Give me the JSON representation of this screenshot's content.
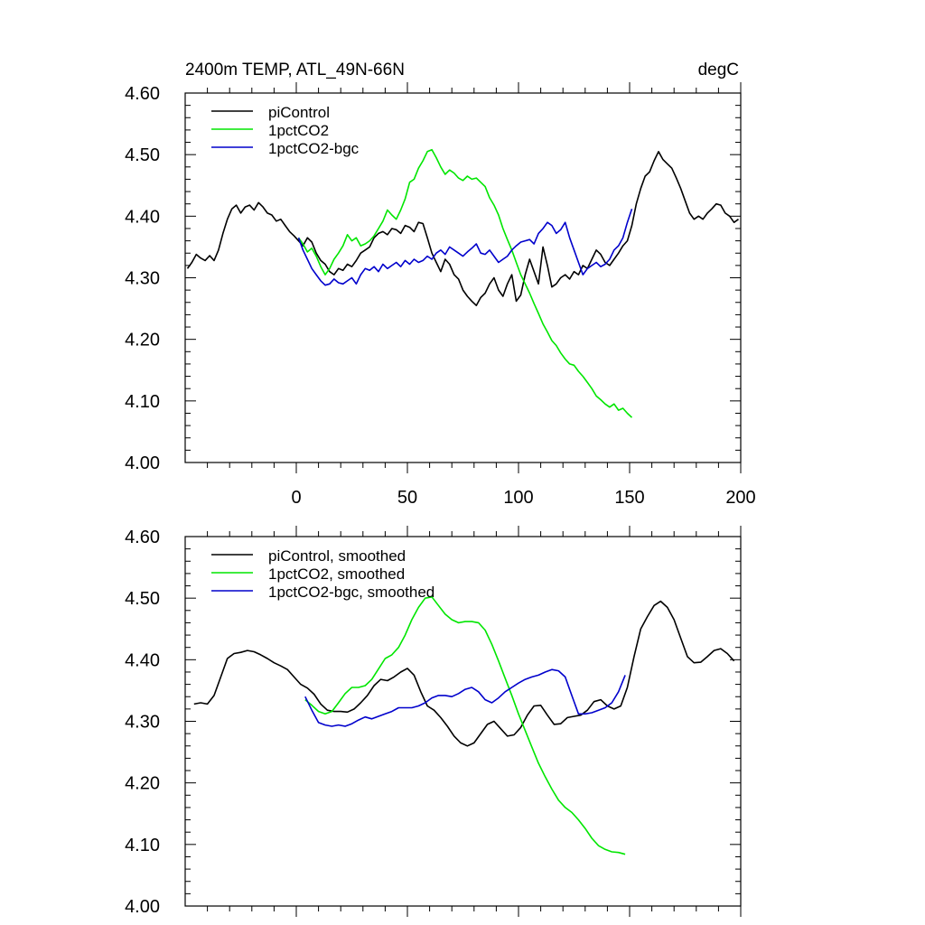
{
  "chart_data": [
    {
      "type": "line",
      "title": "2400m TEMP, ATL_49N-66N",
      "units": "degC",
      "xlim": [
        -50,
        200
      ],
      "ylim": [
        4.0,
        4.6
      ],
      "xticks": [
        0,
        50,
        100,
        150,
        200
      ],
      "yticks": [
        4.0,
        4.1,
        4.2,
        4.3,
        4.4,
        4.5,
        4.6
      ],
      "ytick_labels": [
        "4.00",
        "4.10",
        "4.20",
        "4.30",
        "4.40",
        "4.50",
        "4.60"
      ],
      "xtick_labels": [
        "0",
        "50",
        "100",
        "150",
        "200"
      ],
      "legend": [
        "piControl",
        "1pctCO2",
        "1pctCO2-bgc"
      ],
      "series": [
        {
          "name": "piControl",
          "color": "#000000",
          "x": [
            -49,
            -47,
            -45,
            -43,
            -41,
            -39,
            -37,
            -35,
            -33,
            -31,
            -29,
            -27,
            -25,
            -23,
            -21,
            -19,
            -17,
            -15,
            -13,
            -11,
            -9,
            -7,
            -5,
            -3,
            -1,
            1,
            3,
            5,
            7,
            9,
            11,
            13,
            15,
            17,
            19,
            21,
            23,
            25,
            27,
            29,
            31,
            33,
            35,
            37,
            39,
            41,
            43,
            45,
            47,
            49,
            51,
            53,
            55,
            57,
            59,
            61,
            63,
            65,
            67,
            69,
            71,
            73,
            75,
            77,
            79,
            81,
            83,
            85,
            87,
            89,
            91,
            93,
            95,
            97,
            99,
            101,
            103,
            105,
            107,
            109,
            111,
            113,
            115,
            117,
            119,
            121,
            123,
            125,
            127,
            129,
            131,
            133,
            135,
            137,
            139,
            141,
            143,
            145,
            147,
            149,
            151,
            153,
            155,
            157,
            159,
            161,
            163,
            165,
            167,
            169,
            171,
            173,
            175,
            177,
            179,
            181,
            183,
            185,
            187,
            189,
            191,
            193,
            195,
            197,
            199
          ],
          "y": [
            4.315,
            4.325,
            4.338,
            4.332,
            4.328,
            4.336,
            4.328,
            4.345,
            4.372,
            4.395,
            4.412,
            4.418,
            4.405,
            4.415,
            4.418,
            4.41,
            4.422,
            4.415,
            4.405,
            4.402,
            4.392,
            4.395,
            4.385,
            4.375,
            4.368,
            4.36,
            4.352,
            4.365,
            4.358,
            4.34,
            4.328,
            4.322,
            4.31,
            4.305,
            4.315,
            4.312,
            4.322,
            4.318,
            4.328,
            4.34,
            4.345,
            4.35,
            4.365,
            4.372,
            4.375,
            4.37,
            4.38,
            4.378,
            4.372,
            4.385,
            4.382,
            4.375,
            4.39,
            4.388,
            4.365,
            4.34,
            4.325,
            4.31,
            4.33,
            4.322,
            4.305,
            4.298,
            4.28,
            4.27,
            4.262,
            4.255,
            4.268,
            4.275,
            4.29,
            4.3,
            4.28,
            4.27,
            4.29,
            4.305,
            4.262,
            4.272,
            4.305,
            4.33,
            4.31,
            4.29,
            4.35,
            4.32,
            4.285,
            4.29,
            4.3,
            4.305,
            4.298,
            4.31,
            4.305,
            4.32,
            4.315,
            4.33,
            4.345,
            4.338,
            4.325,
            4.32,
            4.33,
            4.34,
            4.352,
            4.36,
            4.385,
            4.42,
            4.445,
            4.465,
            4.472,
            4.49,
            4.505,
            4.492,
            4.485,
            4.478,
            4.462,
            4.445,
            4.425,
            4.405,
            4.395,
            4.4,
            4.395,
            4.405,
            4.412,
            4.42,
            4.418,
            4.405,
            4.4,
            4.39,
            4.395
          ]
        },
        {
          "name": "1pctCO2",
          "color": "#00e600",
          "x": [
            1,
            3,
            5,
            7,
            9,
            11,
            13,
            15,
            17,
            19,
            21,
            23,
            25,
            27,
            29,
            31,
            33,
            35,
            37,
            39,
            41,
            43,
            45,
            47,
            49,
            51,
            53,
            55,
            57,
            59,
            61,
            63,
            65,
            67,
            69,
            71,
            73,
            75,
            77,
            79,
            81,
            83,
            85,
            87,
            89,
            91,
            93,
            95,
            97,
            99,
            101,
            103,
            105,
            107,
            109,
            111,
            113,
            115,
            117,
            119,
            121,
            123,
            125,
            127,
            129,
            131,
            133,
            135,
            137,
            139,
            141,
            143,
            145,
            147,
            149,
            151
          ],
          "y": [
            4.365,
            4.355,
            4.342,
            4.348,
            4.335,
            4.318,
            4.305,
            4.315,
            4.33,
            4.34,
            4.352,
            4.37,
            4.36,
            4.365,
            4.352,
            4.355,
            4.36,
            4.368,
            4.38,
            4.392,
            4.41,
            4.402,
            4.395,
            4.41,
            4.428,
            4.455,
            4.46,
            4.478,
            4.49,
            4.505,
            4.508,
            4.495,
            4.48,
            4.468,
            4.475,
            4.47,
            4.462,
            4.458,
            4.465,
            4.46,
            4.462,
            4.455,
            4.448,
            4.43,
            4.418,
            4.402,
            4.38,
            4.362,
            4.345,
            4.325,
            4.305,
            4.29,
            4.275,
            4.258,
            4.242,
            4.225,
            4.212,
            4.198,
            4.19,
            4.178,
            4.168,
            4.16,
            4.158,
            4.148,
            4.14,
            4.13,
            4.12,
            4.108,
            4.102,
            4.095,
            4.09,
            4.095,
            4.085,
            4.088,
            4.08,
            4.073
          ]
        },
        {
          "name": "1pctCO2-bgc",
          "color": "#0000cc",
          "x": [
            1,
            3,
            5,
            7,
            9,
            11,
            13,
            15,
            17,
            19,
            21,
            23,
            25,
            27,
            29,
            31,
            33,
            35,
            37,
            39,
            41,
            43,
            45,
            47,
            49,
            51,
            53,
            55,
            57,
            59,
            61,
            63,
            65,
            67,
            69,
            71,
            73,
            75,
            77,
            79,
            81,
            83,
            85,
            87,
            89,
            91,
            93,
            95,
            97,
            99,
            101,
            103,
            105,
            107,
            109,
            111,
            113,
            115,
            117,
            119,
            121,
            123,
            125,
            127,
            129,
            131,
            133,
            135,
            137,
            139,
            141,
            143,
            145,
            147,
            149,
            151
          ],
          "y": [
            4.365,
            4.345,
            4.33,
            4.315,
            4.305,
            4.295,
            4.288,
            4.29,
            4.298,
            4.292,
            4.29,
            4.295,
            4.3,
            4.29,
            4.305,
            4.315,
            4.312,
            4.318,
            4.31,
            4.322,
            4.315,
            4.32,
            4.325,
            4.318,
            4.328,
            4.322,
            4.33,
            4.325,
            4.328,
            4.335,
            4.33,
            4.34,
            4.345,
            4.338,
            4.35,
            4.345,
            4.34,
            4.335,
            4.342,
            4.348,
            4.355,
            4.34,
            4.338,
            4.345,
            4.335,
            4.325,
            4.33,
            4.335,
            4.345,
            4.352,
            4.358,
            4.36,
            4.362,
            4.355,
            4.372,
            4.38,
            4.39,
            4.385,
            4.372,
            4.378,
            4.39,
            4.365,
            4.345,
            4.325,
            4.305,
            4.315,
            4.32,
            4.325,
            4.318,
            4.322,
            4.33,
            4.345,
            4.352,
            4.365,
            4.39,
            4.412
          ]
        }
      ]
    },
    {
      "type": "line",
      "title": "",
      "xlim": [
        -50,
        200
      ],
      "ylim": [
        4.0,
        4.6
      ],
      "xticks": [
        0,
        50,
        100,
        150,
        200
      ],
      "yticks": [
        4.0,
        4.1,
        4.2,
        4.3,
        4.4,
        4.5,
        4.6
      ],
      "ytick_labels": [
        "4.00",
        "4.10",
        "4.20",
        "4.30",
        "4.40",
        "4.50",
        "4.60"
      ],
      "legend": [
        "piControl, smoothed",
        "1pctCO2, smoothed",
        "1pctCO2-bgc, smoothed"
      ],
      "series": [
        {
          "name": "piControl, smoothed",
          "color": "#000000",
          "x": [
            -46,
            -43,
            -40,
            -37,
            -34,
            -31,
            -28,
            -25,
            -22,
            -19,
            -16,
            -13,
            -10,
            -7,
            -4,
            -1,
            2,
            5,
            8,
            11,
            14,
            17,
            20,
            23,
            26,
            29,
            32,
            35,
            38,
            41,
            44,
            47,
            50,
            53,
            56,
            59,
            62,
            65,
            68,
            71,
            74,
            77,
            80,
            83,
            86,
            89,
            92,
            95,
            98,
            101,
            104,
            107,
            110,
            113,
            116,
            119,
            122,
            125,
            128,
            131,
            134,
            137,
            140,
            143,
            146,
            149,
            152,
            155,
            158,
            161,
            164,
            167,
            170,
            173,
            176,
            179,
            182,
            185,
            188,
            191,
            194,
            197
          ],
          "y": [
            4.328,
            4.33,
            4.328,
            4.342,
            4.372,
            4.402,
            4.41,
            4.412,
            4.415,
            4.413,
            4.408,
            4.402,
            4.395,
            4.39,
            4.384,
            4.372,
            4.36,
            4.354,
            4.344,
            4.328,
            4.318,
            4.316,
            4.316,
            4.315,
            4.32,
            4.33,
            4.342,
            4.358,
            4.368,
            4.366,
            4.372,
            4.38,
            4.386,
            4.375,
            4.348,
            4.325,
            4.318,
            4.306,
            4.292,
            4.276,
            4.265,
            4.26,
            4.265,
            4.28,
            4.295,
            4.3,
            4.288,
            4.276,
            4.278,
            4.29,
            4.31,
            4.325,
            4.326,
            4.31,
            4.295,
            4.296,
            4.306,
            4.308,
            4.31,
            4.318,
            4.332,
            4.335,
            4.325,
            4.32,
            4.325,
            4.355,
            4.405,
            4.45,
            4.47,
            4.488,
            4.495,
            4.485,
            4.465,
            4.435,
            4.405,
            4.395,
            4.396,
            4.405,
            4.415,
            4.418,
            4.41,
            4.398
          ]
        },
        {
          "name": "1pctCO2, smoothed",
          "color": "#00e600",
          "x": [
            4,
            7,
            10,
            13,
            16,
            19,
            22,
            25,
            28,
            31,
            34,
            37,
            40,
            43,
            46,
            49,
            52,
            55,
            58,
            61,
            64,
            67,
            70,
            73,
            76,
            79,
            82,
            85,
            88,
            91,
            94,
            97,
            100,
            103,
            106,
            109,
            112,
            115,
            118,
            121,
            124,
            127,
            130,
            133,
            136,
            139,
            142,
            145,
            148
          ],
          "y": [
            4.335,
            4.326,
            4.316,
            4.312,
            4.316,
            4.33,
            4.345,
            4.355,
            4.355,
            4.358,
            4.368,
            4.385,
            4.402,
            4.408,
            4.42,
            4.44,
            4.465,
            4.485,
            4.5,
            4.502,
            4.488,
            4.474,
            4.465,
            4.46,
            4.462,
            4.462,
            4.46,
            4.448,
            4.425,
            4.398,
            4.37,
            4.342,
            4.312,
            4.285,
            4.258,
            4.232,
            4.21,
            4.19,
            4.172,
            4.16,
            4.152,
            4.14,
            4.126,
            4.11,
            4.098,
            4.092,
            4.088,
            4.087,
            4.084
          ]
        },
        {
          "name": "1pctCO2-bgc, smoothed",
          "color": "#0000cc",
          "x": [
            4,
            7,
            10,
            13,
            16,
            19,
            22,
            25,
            28,
            31,
            34,
            37,
            40,
            43,
            46,
            49,
            52,
            55,
            58,
            61,
            64,
            67,
            70,
            73,
            76,
            79,
            82,
            85,
            88,
            91,
            94,
            97,
            100,
            103,
            106,
            109,
            112,
            115,
            118,
            121,
            124,
            127,
            130,
            133,
            136,
            139,
            142,
            145,
            148
          ],
          "y": [
            4.34,
            4.318,
            4.298,
            4.294,
            4.292,
            4.294,
            4.292,
            4.296,
            4.302,
            4.307,
            4.304,
            4.308,
            4.312,
            4.316,
            4.322,
            4.322,
            4.322,
            4.325,
            4.33,
            4.338,
            4.342,
            4.342,
            4.34,
            4.345,
            4.352,
            4.355,
            4.348,
            4.335,
            4.33,
            4.338,
            4.348,
            4.355,
            4.362,
            4.368,
            4.372,
            4.375,
            4.38,
            4.384,
            4.382,
            4.372,
            4.342,
            4.312,
            4.312,
            4.314,
            4.318,
            4.322,
            4.33,
            4.348,
            4.375
          ]
        }
      ]
    }
  ]
}
